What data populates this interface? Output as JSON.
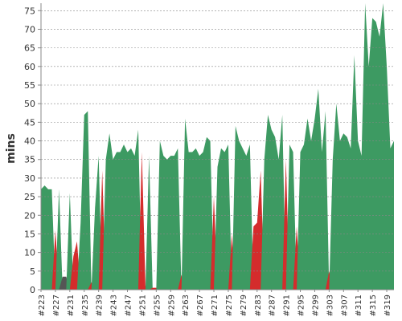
{
  "chart_data": {
    "type": "area",
    "y_label": "mins",
    "categories": [
      "#223",
      null,
      null,
      null,
      "#227",
      null,
      null,
      null,
      "#231",
      null,
      null,
      null,
      "#235",
      null,
      null,
      null,
      "#239",
      null,
      null,
      null,
      "#243",
      null,
      null,
      null,
      "#247",
      null,
      null,
      null,
      "#251",
      null,
      null,
      null,
      "#255",
      null,
      null,
      null,
      "#259",
      null,
      null,
      null,
      "#263",
      null,
      null,
      null,
      "#267",
      null,
      null,
      null,
      "#271",
      null,
      null,
      null,
      "#275",
      null,
      null,
      null,
      "#279",
      null,
      null,
      null,
      "#283",
      null,
      null,
      null,
      "#287",
      null,
      null,
      null,
      "#291",
      null,
      null,
      null,
      "#295",
      null,
      null,
      null,
      "#299",
      null,
      null,
      null,
      "#303",
      null,
      null,
      null,
      "#307",
      null,
      null,
      null,
      "#311",
      null,
      null,
      null,
      "#315",
      null,
      null,
      null,
      "#319",
      null,
      null
    ],
    "values": [
      27,
      28,
      27,
      27,
      16,
      27,
      3.5,
      3.5,
      26,
      9,
      13,
      18,
      47,
      48,
      2,
      22,
      36,
      32,
      35,
      42,
      35,
      37,
      37,
      39,
      37,
      38,
      36,
      43,
      37,
      1,
      36,
      0.5,
      0.5,
      40,
      36,
      35,
      36,
      36,
      38,
      4,
      46,
      37,
      37,
      38,
      36,
      37,
      41,
      40,
      25,
      33,
      38,
      37,
      39,
      15,
      44,
      40,
      38,
      36,
      39,
      17,
      18,
      32,
      35,
      47,
      43,
      41,
      35,
      47,
      35,
      39,
      37,
      17,
      37,
      39,
      46,
      40,
      46,
      54,
      37,
      48,
      5,
      35,
      50,
      40,
      42,
      41,
      38,
      63,
      40,
      36,
      77,
      60,
      73,
      72,
      68,
      77,
      60,
      38,
      40
    ],
    "point_colors": [
      "#3d9a62",
      "#3d9a62",
      "#3d9a62",
      "#3d9a62",
      "#d42c2c",
      "#3d9a62",
      "#555555",
      "#555555",
      "#3d9a62",
      "#d42c2c",
      "#d42c2c",
      "#3d9a62",
      "#3d9a62",
      "#3d9a62",
      "#d42c2c",
      "#3d9a62",
      "#3d9a62",
      "#d42c2c",
      "#3d9a62",
      "#3d9a62",
      "#3d9a62",
      "#3d9a62",
      "#3d9a62",
      "#3d9a62",
      "#3d9a62",
      "#3d9a62",
      "#3d9a62",
      "#3d9a62",
      "#d42c2c",
      "#d42c2c",
      "#3d9a62",
      "#d42c2c",
      "#d42c2c",
      "#3d9a62",
      "#3d9a62",
      "#3d9a62",
      "#3d9a62",
      "#3d9a62",
      "#3d9a62",
      "#d42c2c",
      "#3d9a62",
      "#3d9a62",
      "#3d9a62",
      "#3d9a62",
      "#3d9a62",
      "#3d9a62",
      "#3d9a62",
      "#3d9a62",
      "#d42c2c",
      "#3d9a62",
      "#3d9a62",
      "#3d9a62",
      "#3d9a62",
      "#d42c2c",
      "#3d9a62",
      "#3d9a62",
      "#3d9a62",
      "#3d9a62",
      "#3d9a62",
      "#d42c2c",
      "#d42c2c",
      "#d42c2c",
      "#3d9a62",
      "#3d9a62",
      "#3d9a62",
      "#3d9a62",
      "#3d9a62",
      "#3d9a62",
      "#d42c2c",
      "#3d9a62",
      "#3d9a62",
      "#d42c2c",
      "#3d9a62",
      "#3d9a62",
      "#3d9a62",
      "#3d9a62",
      "#3d9a62",
      "#3d9a62",
      "#3d9a62",
      "#3d9a62",
      "#d42c2c",
      "#3d9a62",
      "#3d9a62",
      "#3d9a62",
      "#3d9a62",
      "#3d9a62",
      "#3d9a62",
      "#3d9a62",
      "#3d9a62",
      "#3d9a62",
      "#3d9a62",
      "#3d9a62",
      "#3d9a62",
      "#3d9a62",
      "#3d9a62",
      "#3d9a62",
      "#3d9a62",
      "#3d9a62",
      "#3d9a62"
    ],
    "ylim": [
      0,
      77
    ],
    "yticks": [
      0,
      5,
      10,
      15,
      20,
      25,
      30,
      35,
      40,
      45,
      50,
      55,
      60,
      65,
      70,
      75
    ],
    "grid": true
  }
}
